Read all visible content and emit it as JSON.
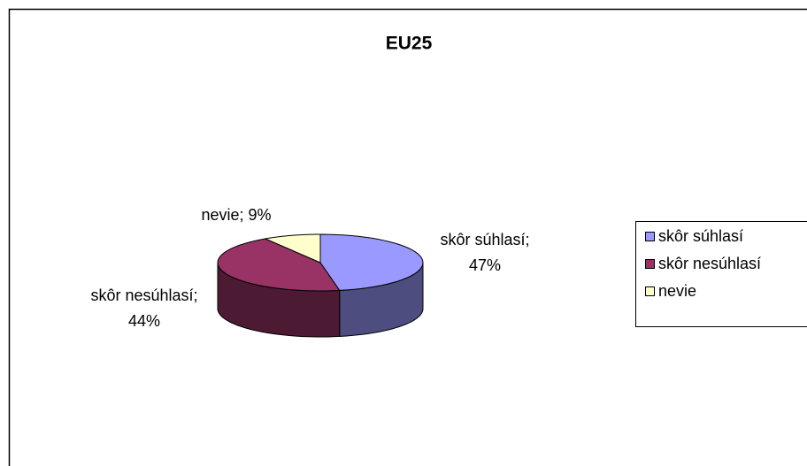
{
  "chart_data": {
    "type": "pie",
    "title": "EU25",
    "categories": [
      "skôr súhlasí",
      "skôr nesúhlasí",
      "nevie"
    ],
    "values": [
      47,
      44,
      9
    ],
    "value_labels": [
      [
        "skôr súhlasí;",
        "47%"
      ],
      [
        "skôr nesúhlasí;",
        "44%"
      ],
      [
        "nevie; 9%"
      ]
    ],
    "colors": [
      "#9999ff",
      "#993366",
      "#ffffcc"
    ],
    "legend": "right"
  }
}
